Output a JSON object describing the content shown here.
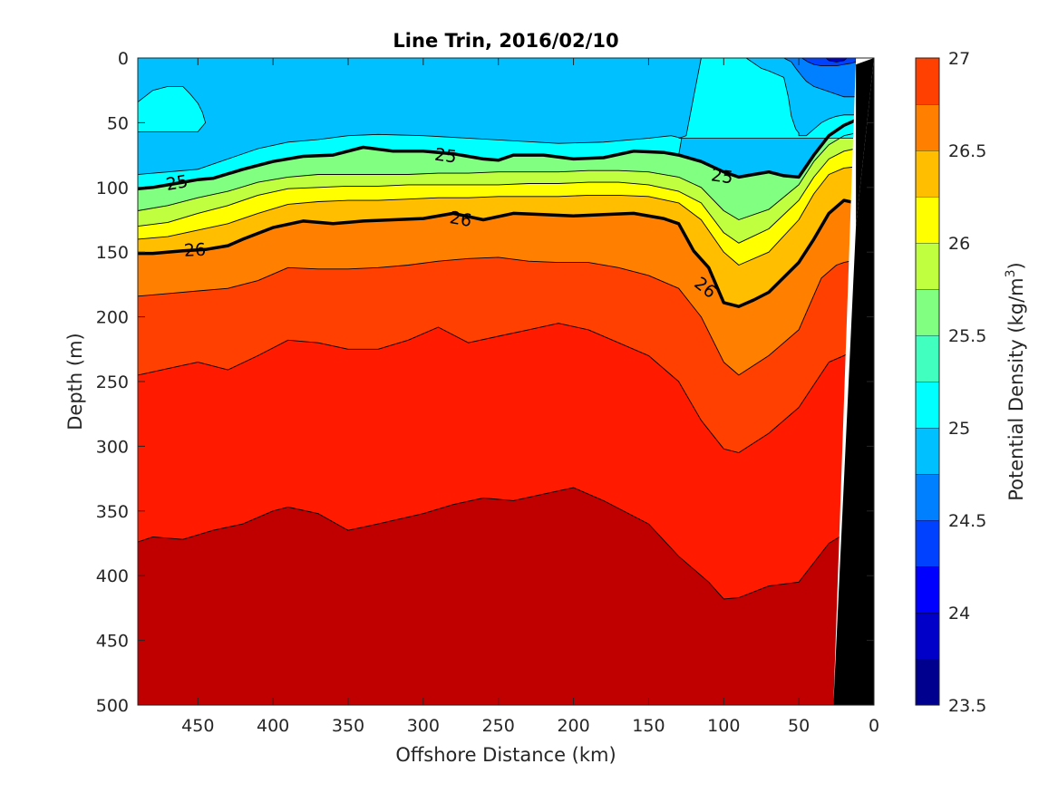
{
  "chart_data": {
    "type": "filled-contour",
    "title": "Line Trin, 2016/02/10",
    "xlabel": "Offshore Distance (km)",
    "ylabel": "Depth (m)",
    "x_reversed": true,
    "y_reversed": true,
    "xlim": [
      490,
      0
    ],
    "ylim": [
      0,
      500
    ],
    "x_ticks": [
      "450",
      "400",
      "350",
      "300",
      "250",
      "200",
      "150",
      "100",
      "50",
      "0"
    ],
    "x_tick_values": [
      450,
      400,
      350,
      300,
      250,
      200,
      150,
      100,
      50,
      0
    ],
    "y_ticks": [
      "0",
      "50",
      "100",
      "150",
      "200",
      "250",
      "300",
      "350",
      "400",
      "450",
      "500"
    ],
    "y_tick_values": [
      0,
      50,
      100,
      150,
      200,
      250,
      300,
      350,
      400,
      450,
      500
    ],
    "colorbar": {
      "label_main": "Potential Density (kg/m",
      "label_sup": "3",
      "label_end": ")",
      "range": [
        23.5,
        27
      ],
      "tick_labels": [
        "27",
        "26.5",
        "26",
        "25.5",
        "25",
        "24.5",
        "24",
        "23.5"
      ],
      "tick_values": [
        27,
        26.5,
        26,
        25.5,
        25,
        24.5,
        24,
        23.5
      ],
      "levels": [
        23.5,
        23.75,
        24,
        24.25,
        24.5,
        24.75,
        25,
        25.25,
        25.5,
        25.75,
        26,
        26.25,
        26.5,
        26.75,
        27
      ],
      "colors": [
        "#00008f",
        "#0000c8",
        "#0000ff",
        "#0040ff",
        "#0080ff",
        "#00c0ff",
        "#00ffff",
        "#40ffbf",
        "#80ff80",
        "#c0ff40",
        "#ffff00",
        "#ffbf00",
        "#ff8000",
        "#ff4000",
        "#ff1a00",
        "#c00000"
      ]
    },
    "contour_labels": [
      {
        "text": "25",
        "x": 464,
        "y": 96,
        "angle": -10
      },
      {
        "text": "25",
        "x": 285,
        "y": 75,
        "angle": 8
      },
      {
        "text": "25",
        "x": 101,
        "y": 91,
        "angle": 8
      },
      {
        "text": "26",
        "x": 452,
        "y": 148,
        "angle": -3
      },
      {
        "text": "26",
        "x": 275,
        "y": 124,
        "angle": 10
      },
      {
        "text": "26",
        "x": 112,
        "y": 177,
        "angle": 38
      }
    ],
    "band_boundaries": [
      {
        "upper_color": "#ff1a00",
        "lower_color": "#c00000",
        "level": 26.75,
        "x": [
          490,
          480,
          460,
          440,
          420,
          400,
          390,
          370,
          350,
          330,
          300,
          280,
          260,
          240,
          220,
          200,
          180,
          150,
          130,
          110,
          100,
          90,
          70,
          50,
          30,
          20,
          12
        ],
        "y": [
          374,
          370,
          372,
          365,
          360,
          350,
          347,
          352,
          365,
          360,
          352,
          345,
          340,
          342,
          337,
          332,
          342,
          360,
          385,
          405,
          418,
          417,
          408,
          405,
          375,
          368,
          362
        ]
      },
      {
        "upper_color": "#ff4000",
        "lower_color": "#ff1a00",
        "level": 26.5,
        "x": [
          490,
          470,
          450,
          430,
          410,
          390,
          370,
          350,
          330,
          310,
          290,
          270,
          250,
          230,
          210,
          190,
          170,
          150,
          130,
          115,
          100,
          90,
          70,
          50,
          30,
          20,
          12
        ],
        "y": [
          245,
          240,
          235,
          241,
          230,
          218,
          220,
          225,
          225,
          218,
          208,
          220,
          215,
          210,
          205,
          210,
          220,
          230,
          250,
          280,
          302,
          305,
          290,
          270,
          235,
          230,
          225
        ]
      },
      {
        "upper_color": "#ff8000",
        "lower_color": "#ff4000",
        "level": 26.25,
        "x": [
          490,
          470,
          450,
          430,
          410,
          390,
          370,
          350,
          330,
          310,
          290,
          270,
          250,
          230,
          210,
          190,
          170,
          150,
          130,
          115,
          100,
          90,
          70,
          50,
          35,
          25,
          20,
          12
        ],
        "y": [
          184,
          182,
          180,
          178,
          172,
          162,
          163,
          163,
          162,
          160,
          157,
          155,
          154,
          157,
          158,
          158,
          162,
          168,
          178,
          200,
          235,
          245,
          230,
          210,
          170,
          160,
          158,
          156
        ]
      },
      {
        "upper_color": "#ffbf00",
        "lower_color": "#ff8000",
        "level": 26.0,
        "x": [
          490,
          480,
          460,
          445,
          430,
          420,
          400,
          380,
          360,
          340,
          320,
          300,
          280,
          260,
          240,
          220,
          200,
          180,
          160,
          140,
          130,
          120,
          110,
          100,
          90,
          80,
          70,
          50,
          40,
          30,
          20,
          12
        ],
        "y": [
          151,
          151,
          149,
          148,
          145,
          140,
          131,
          126,
          128,
          126,
          125,
          124,
          120,
          125,
          120,
          121,
          122,
          121,
          120,
          124,
          128,
          149,
          162,
          189,
          192,
          187,
          181,
          158,
          140,
          120,
          110,
          112
        ]
      },
      {
        "upper_color": "#ffff00",
        "lower_color": "#ffbf00",
        "level": 25.75,
        "x": [
          490,
          470,
          450,
          430,
          410,
          390,
          370,
          350,
          330,
          310,
          290,
          270,
          250,
          230,
          210,
          190,
          170,
          150,
          130,
          115,
          100,
          90,
          70,
          50,
          40,
          30,
          20,
          12
        ],
        "y": [
          140,
          138,
          133,
          128,
          120,
          113,
          111,
          110,
          110,
          109,
          108,
          108,
          107,
          107,
          107,
          106,
          106,
          107,
          112,
          125,
          150,
          160,
          150,
          125,
          105,
          90,
          85,
          84
        ]
      },
      {
        "upper_color": "#c0ff40",
        "lower_color": "#ffff00",
        "level": 25.5,
        "x": [
          490,
          470,
          450,
          430,
          410,
          390,
          370,
          350,
          330,
          310,
          290,
          270,
          250,
          230,
          210,
          190,
          170,
          150,
          130,
          115,
          100,
          90,
          70,
          50,
          40,
          30,
          20,
          12
        ],
        "y": [
          130,
          127,
          120,
          114,
          106,
          101,
          100,
          99,
          99,
          98,
          98,
          98,
          98,
          97,
          97,
          96,
          96,
          98,
          103,
          112,
          135,
          143,
          132,
          110,
          92,
          78,
          72,
          70
        ]
      },
      {
        "upper_color": "#80ff80",
        "lower_color": "#c0ff40",
        "level": 25.25,
        "x": [
          490,
          470,
          450,
          430,
          410,
          390,
          370,
          350,
          330,
          310,
          290,
          270,
          250,
          230,
          210,
          190,
          170,
          150,
          130,
          115,
          100,
          90,
          70,
          50,
          40,
          30,
          20,
          12
        ],
        "y": [
          118,
          114,
          108,
          103,
          96,
          92,
          90,
          90,
          90,
          90,
          89,
          89,
          88,
          88,
          88,
          87,
          87,
          88,
          92,
          100,
          118,
          125,
          117,
          98,
          80,
          67,
          60,
          58
        ]
      },
      {
        "upper_color": "#40ffbf",
        "lower_color": "#80ff80",
        "level": 25.0,
        "x": [
          490,
          480,
          460,
          450,
          440,
          420,
          400,
          380,
          360,
          340,
          320,
          300,
          280,
          260,
          250,
          240,
          220,
          200,
          180,
          160,
          140,
          130,
          115,
          100,
          90,
          80,
          70,
          60,
          50,
          40,
          30,
          20,
          12
        ],
        "y": [
          101,
          100,
          96,
          94,
          93,
          86,
          80,
          76,
          75,
          69,
          72,
          72,
          74,
          78,
          79,
          75,
          75,
          78,
          77,
          72,
          73,
          75,
          80,
          88,
          92,
          90,
          88,
          91,
          92,
          75,
          60,
          52,
          48
        ]
      }
    ],
    "top_features": [
      {
        "color": "#00ffff",
        "x": [
          490,
          480,
          470,
          465,
          460,
          455,
          450,
          447,
          445,
          450,
          470,
          490
        ],
        "y": [
          34,
          28,
          25,
          23,
          22,
          28,
          35,
          42,
          48,
          55,
          57,
          57
        ]
      },
      {
        "color": "#00ffff",
        "x": [
          490,
          450,
          430,
          410,
          390,
          370,
          350,
          330,
          300,
          270,
          240,
          210,
          180,
          150,
          130,
          125,
          120,
          115,
          105,
          90,
          80,
          70,
          60,
          55,
          52,
          50,
          45,
          40,
          30,
          20,
          12,
          12,
          20,
          40,
          60,
          490
        ],
        "y": [
          90,
          85,
          75,
          68,
          63,
          62,
          60,
          58,
          60,
          62,
          64,
          66,
          65,
          62,
          60,
          50,
          30,
          0,
          0,
          0,
          8,
          14,
          25,
          45,
          55,
          60,
          60,
          55,
          50,
          45,
          44,
          90,
          90,
          90,
          90,
          90
        ]
      },
      {
        "color": "#00c0ff",
        "x": [
          490,
          450,
          420,
          400,
          380,
          360,
          340,
          320,
          300,
          280,
          260,
          240,
          220,
          200,
          180,
          160,
          150,
          140,
          135,
          130,
          120,
          115,
          90,
          80,
          70,
          60,
          55,
          52,
          50,
          45,
          40,
          30,
          20,
          12,
          12,
          25,
          30,
          40,
          45
        ],
        "y": [
          0,
          0,
          0,
          0,
          0,
          0,
          0,
          0,
          0,
          0,
          0,
          0,
          0,
          0,
          0,
          0,
          0,
          0,
          0,
          0,
          0,
          0,
          0,
          8,
          14,
          25,
          45,
          55,
          60,
          60,
          55,
          50,
          45,
          44,
          0,
          0,
          0,
          0,
          0
        ]
      },
      {
        "color": "#0080ff",
        "x": [
          55,
          50,
          48,
          45,
          40,
          35,
          30,
          25,
          20,
          15,
          12,
          12,
          55
        ],
        "y": [
          0,
          5,
          10,
          15,
          22,
          25,
          26,
          28,
          30,
          30,
          30,
          0,
          0
        ]
      },
      {
        "color": "#0040ff",
        "x": [
          45,
          40,
          35,
          30,
          25,
          20,
          15,
          12,
          12,
          45
        ],
        "y": [
          0,
          4,
          8,
          10,
          10,
          8,
          6,
          5,
          0,
          0
        ]
      }
    ],
    "cyan_lens": {
      "color": "#00ffff",
      "x": [
        490,
        480,
        470,
        460,
        455,
        450,
        447,
        445,
        450,
        470,
        490
      ],
      "y": [
        34,
        25,
        22,
        22,
        28,
        35,
        42,
        50,
        57,
        57,
        57
      ]
    },
    "cyan_plume": {
      "color": "#00ffff",
      "x": [
        125,
        120,
        115,
        100,
        85,
        75,
        70,
        60,
        57,
        55,
        52,
        50,
        50,
        45,
        40,
        35,
        30,
        25,
        20,
        15,
        12,
        12,
        128,
        130
      ],
      "y": [
        60,
        30,
        0,
        0,
        0,
        8,
        10,
        15,
        30,
        45,
        55,
        58,
        60,
        60,
        55,
        50,
        47,
        45,
        44,
        44,
        44,
        62,
        62,
        62
      ]
    },
    "topography": {
      "color": "#000000",
      "x": [
        12,
        27,
        25,
        23,
        21,
        19,
        17,
        15,
        12
      ],
      "y": [
        0,
        500,
        500,
        400,
        300,
        200,
        120,
        60,
        0
      ]
    },
    "bold_contours": [
      25.0,
      26.0
    ]
  }
}
